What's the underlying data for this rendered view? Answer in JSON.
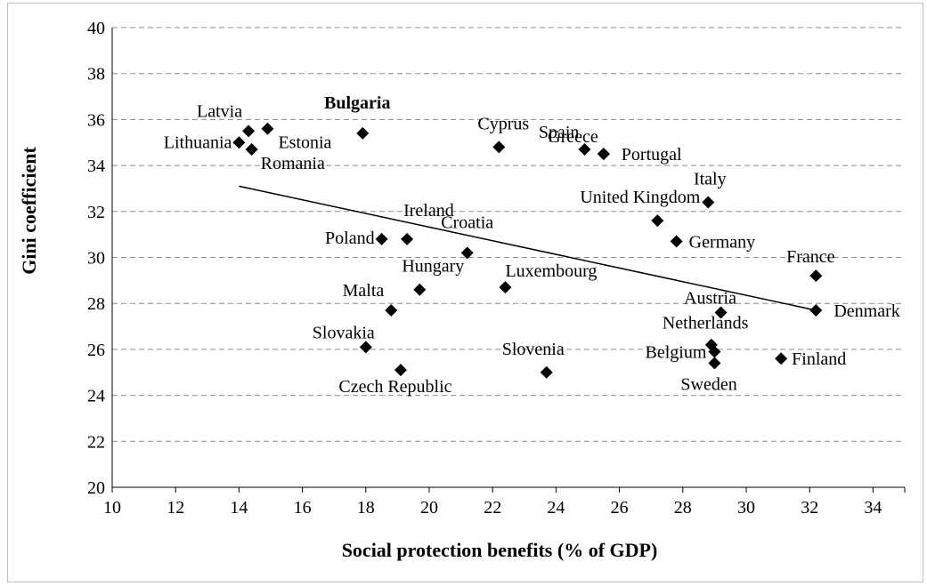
{
  "chart_data": {
    "type": "scatter",
    "xlabel": "Social protection benefits (% of GDP)",
    "ylabel": "Gini coefficient",
    "xlim": [
      10,
      35
    ],
    "ylim": [
      20,
      40
    ],
    "x_ticks": [
      10,
      12,
      14,
      16,
      18,
      20,
      22,
      24,
      26,
      28,
      30,
      32,
      34
    ],
    "y_ticks": [
      20,
      22,
      24,
      26,
      28,
      30,
      32,
      34,
      36,
      38,
      40
    ],
    "grid": "horizontal dashed",
    "marker": "diamond",
    "highlight": "Bulgaria",
    "points": [
      {
        "label": "Latvia",
        "x": 14.3,
        "y": 35.5
      },
      {
        "label": "Estonia",
        "x": 14.9,
        "y": 35.6
      },
      {
        "label": "Lithuania",
        "x": 14.0,
        "y": 35.0
      },
      {
        "label": "Romania",
        "x": 14.4,
        "y": 34.7
      },
      {
        "label": "Bulgaria",
        "x": 17.9,
        "y": 35.4
      },
      {
        "label": "Cyprus",
        "x": 22.2,
        "y": 34.8
      },
      {
        "label": "Spain",
        "x": 24.9,
        "y": 34.7
      },
      {
        "label": "Greece",
        "x": 25.5,
        "y": 34.5
      },
      {
        "label": "Portugal",
        "x": 25.5,
        "y": 34.5
      },
      {
        "label": "Italy",
        "x": 28.8,
        "y": 32.4
      },
      {
        "label": "United Kingdom",
        "x": 27.2,
        "y": 31.6
      },
      {
        "label": "Germany",
        "x": 27.8,
        "y": 30.7
      },
      {
        "label": "Ireland",
        "x": 19.3,
        "y": 30.8
      },
      {
        "label": "Poland",
        "x": 18.5,
        "y": 30.8
      },
      {
        "label": "Croatia",
        "x": 21.2,
        "y": 30.2
      },
      {
        "label": "France",
        "x": 32.2,
        "y": 29.2
      },
      {
        "label": "Hungary",
        "x": 19.7,
        "y": 28.6
      },
      {
        "label": "Luxembourg",
        "x": 22.4,
        "y": 28.7
      },
      {
        "label": "Malta",
        "x": 18.8,
        "y": 27.7
      },
      {
        "label": "Austria",
        "x": 29.2,
        "y": 27.6
      },
      {
        "label": "Denmark",
        "x": 32.2,
        "y": 27.7
      },
      {
        "label": "Netherlands",
        "x": 28.9,
        "y": 26.2
      },
      {
        "label": "Slovakia",
        "x": 18.0,
        "y": 26.1
      },
      {
        "label": "Belgium",
        "x": 29.0,
        "y": 25.9
      },
      {
        "label": "Finland",
        "x": 31.1,
        "y": 25.6
      },
      {
        "label": "Sweden",
        "x": 29.0,
        "y": 25.4
      },
      {
        "label": "Slovenia",
        "x": 23.7,
        "y": 25.0
      },
      {
        "label": "Czech Republic",
        "x": 19.1,
        "y": 25.1
      }
    ],
    "trendline": {
      "x": [
        14.0,
        32.2
      ],
      "y": [
        33.1,
        27.7
      ]
    }
  }
}
